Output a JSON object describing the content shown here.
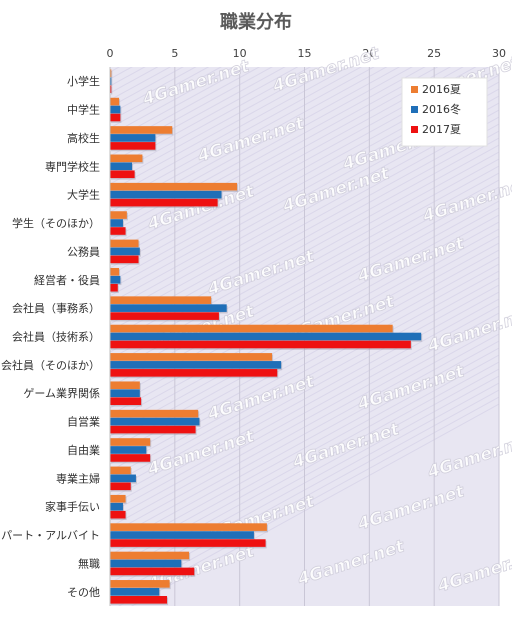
{
  "chart_data": {
    "type": "bar",
    "orientation": "horizontal",
    "title": "職業分布",
    "xlim": [
      0,
      30
    ],
    "xticks": [
      0,
      5,
      10,
      15,
      20,
      25,
      30
    ],
    "grid": true,
    "legend_position": "top-right",
    "categories": [
      "小学生",
      "中学生",
      "高校生",
      "専門学校生",
      "大学生",
      "学生（そのほか）",
      "公務員",
      "経営者・役員",
      "会社員（事務系）",
      "会社員（技術系）",
      "会社員（そのほか）",
      "ゲーム業界関係",
      "自営業",
      "自由業",
      "専業主婦",
      "家事手伝い",
      "パート・アルバイト",
      "無職",
      "その他"
    ],
    "series": [
      {
        "name": "2016夏",
        "color": "#ED7D31",
        "values": [
          0.1,
          0.7,
          4.8,
          2.5,
          9.8,
          1.3,
          2.2,
          0.7,
          7.8,
          21.8,
          12.5,
          2.3,
          6.8,
          3.1,
          1.6,
          1.2,
          12.1,
          6.1,
          4.6
        ]
      },
      {
        "name": "2016冬",
        "color": "#1F6FB8",
        "values": [
          0.1,
          0.8,
          3.5,
          1.7,
          8.6,
          1.0,
          2.3,
          0.8,
          9.0,
          24.0,
          13.2,
          2.3,
          6.9,
          2.8,
          2.0,
          1.0,
          11.1,
          5.5,
          3.8
        ]
      },
      {
        "name": "2017夏",
        "color": "#EE1111",
        "values": [
          0.1,
          0.8,
          3.5,
          1.9,
          8.3,
          1.2,
          2.2,
          0.6,
          8.4,
          23.2,
          12.9,
          2.4,
          6.6,
          3.1,
          1.6,
          1.2,
          12.0,
          6.5,
          4.4
        ]
      }
    ]
  },
  "watermark": "4Gamer.net"
}
